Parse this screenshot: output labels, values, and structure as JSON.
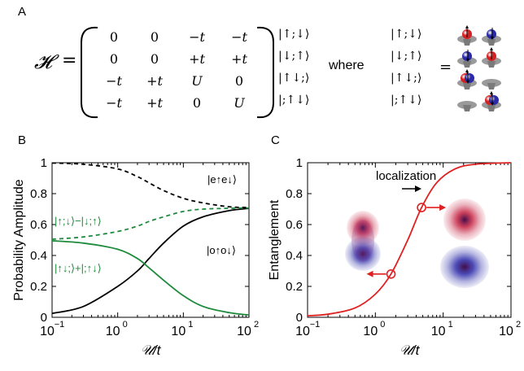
{
  "panel_labels": {
    "a": "A",
    "b": "B",
    "c": "C"
  },
  "hamiltonian": {
    "symbol": "𝓗",
    "equals": "=",
    "rows": [
      [
        "0",
        "0",
        "−t",
        "−t"
      ],
      [
        "0",
        "0",
        "+t",
        "+t"
      ],
      [
        "−t",
        "+t",
        "U",
        "0"
      ],
      [
        "−t",
        "+t",
        "0",
        "U"
      ]
    ],
    "basis": [
      "|↑;↓⟩",
      "|↓;↑⟩",
      "|↑↓;⟩",
      "|;↑↓⟩"
    ],
    "where_label": "where",
    "legend_basis": [
      "|↑;↓⟩",
      "|↓;↑⟩",
      "|↑↓;⟩",
      "|;↑↓⟩"
    ],
    "legend_equals": "=",
    "site_colors": {
      "up": "#d42020",
      "down": "#2a2aa8",
      "well": "#9a9a9a"
    }
  },
  "chart_data": [
    {
      "type": "line",
      "panel": "B",
      "xlabel": "𝒰/t",
      "ylabel": "Probability Amplitude",
      "x_scale": "log",
      "xlim": [
        0.1,
        100
      ],
      "ylim": [
        0,
        1
      ],
      "xticks": [
        "10",
        "10",
        "10",
        "10"
      ],
      "xtick_exponents": [
        "−1",
        "0",
        "1",
        "2"
      ],
      "yticks": [
        "0",
        "0.2",
        "0.4",
        "0.6",
        "0.8",
        "1"
      ],
      "grid": false,
      "series": [
        {
          "name": "|e↑e↓⟩",
          "color": "#000000",
          "dash": "dashed",
          "x": [
            0.1,
            0.3,
            1,
            2,
            3,
            5,
            10,
            20,
            50,
            100
          ],
          "y": [
            0.998,
            0.99,
            0.96,
            0.91,
            0.87,
            0.82,
            0.77,
            0.74,
            0.715,
            0.71
          ]
        },
        {
          "name": "|o↑o↓⟩",
          "color": "#000000",
          "dash": "solid",
          "x": [
            0.1,
            0.3,
            1,
            2,
            3,
            5,
            10,
            20,
            50,
            100
          ],
          "y": [
            0.025,
            0.07,
            0.2,
            0.3,
            0.38,
            0.48,
            0.59,
            0.65,
            0.69,
            0.705
          ]
        },
        {
          "name": "|↑;↓⟩−|↓;↑⟩",
          "color": "#1e8a3c",
          "dash": "dashed",
          "x": [
            0.1,
            0.3,
            1,
            2,
            3,
            5,
            10,
            20,
            50,
            100
          ],
          "y": [
            0.505,
            0.52,
            0.555,
            0.59,
            0.62,
            0.65,
            0.685,
            0.7,
            0.705,
            0.707
          ]
        },
        {
          "name": "|↑↓;⟩+|;↑↓⟩",
          "color": "#1e8a3c",
          "dash": "solid",
          "x": [
            0.1,
            0.3,
            1,
            2,
            3,
            5,
            10,
            20,
            50,
            100
          ],
          "y": [
            0.495,
            0.48,
            0.44,
            0.38,
            0.32,
            0.24,
            0.14,
            0.07,
            0.03,
            0.015
          ]
        }
      ]
    },
    {
      "type": "line",
      "panel": "C",
      "xlabel": "𝒰/t",
      "ylabel": "Entanglement",
      "x_scale": "log",
      "xlim": [
        0.1,
        100
      ],
      "ylim": [
        0,
        1
      ],
      "xticks": [
        "10",
        "10",
        "10",
        "10"
      ],
      "xtick_exponents": [
        "−1",
        "0",
        "1",
        "2"
      ],
      "yticks": [
        "0",
        "0.2",
        "0.4",
        "0.6",
        "0.8",
        "1"
      ],
      "grid": false,
      "annotation": "localization",
      "series": [
        {
          "name": "",
          "color": "#e02020",
          "dash": "solid",
          "x": [
            0.1,
            0.2,
            0.5,
            1,
            1.7,
            3,
            4.8,
            8,
            15,
            30,
            100
          ],
          "y": [
            0.01,
            0.02,
            0.06,
            0.15,
            0.28,
            0.5,
            0.71,
            0.87,
            0.96,
            0.99,
            1.0
          ]
        }
      ],
      "markers": [
        {
          "x": 1.7,
          "y": 0.28
        },
        {
          "x": 4.8,
          "y": 0.71
        }
      ]
    }
  ]
}
